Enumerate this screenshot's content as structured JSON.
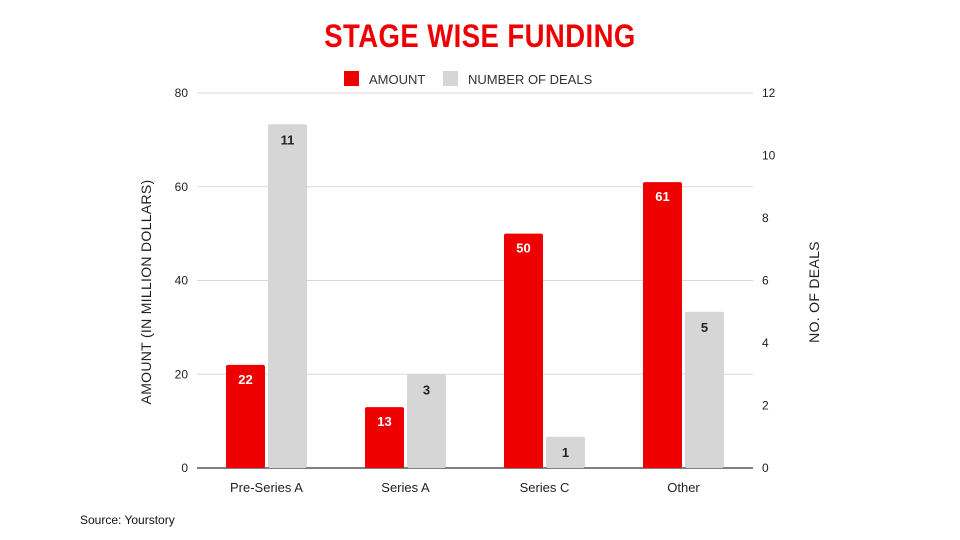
{
  "colors": {
    "amount": "#ee0000",
    "deals": "#d6d6d6",
    "title": "#ee0000",
    "grid": "#d9d9d9",
    "axis": "#333333"
  },
  "chart_data": {
    "type": "bar",
    "title": "STAGE WISE FUNDING",
    "categories": [
      "Pre-Series A",
      "Series A",
      "Series C",
      "Other"
    ],
    "series": [
      {
        "name": "AMOUNT",
        "axis": "left",
        "values": [
          22,
          13,
          50,
          61
        ]
      },
      {
        "name": "NUMBER OF DEALS",
        "axis": "right",
        "values": [
          11,
          3,
          1,
          5
        ]
      }
    ],
    "ylabel": "AMOUNT (IN MILLION DOLLARS)",
    "y2label": "NO. OF DEALS",
    "ylim": [
      0,
      80
    ],
    "y2lim": [
      0,
      12
    ],
    "yticks": [
      0,
      20,
      40,
      60,
      80
    ],
    "y2ticks": [
      0,
      2,
      4,
      6,
      8,
      10,
      12
    ],
    "legend_position": "top-center",
    "grid": true
  },
  "source": "Source: Yourstory"
}
